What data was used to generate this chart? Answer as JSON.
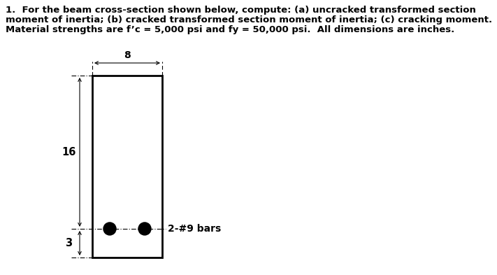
{
  "title_line1": "1.  For the beam cross-section shown below, compute: (a) uncracked transformed section",
  "title_line2": "moment of inertia; (b) cracked transformed section moment of inertia; (c) cracking moment.",
  "title_line3": "Material strengths are f’c = 5,000 psi and fy = 50,000 psi.  All dimensions are inches.",
  "dim_8_label": "8",
  "dim_16_label": "16",
  "dim_3_label": "3",
  "bar_label": "2-#9 bars",
  "beam_color": "#000000",
  "background_color": "#ffffff",
  "text_color": "#000000",
  "fontsize_title": 9.5,
  "fontsize_labels": 10.5
}
